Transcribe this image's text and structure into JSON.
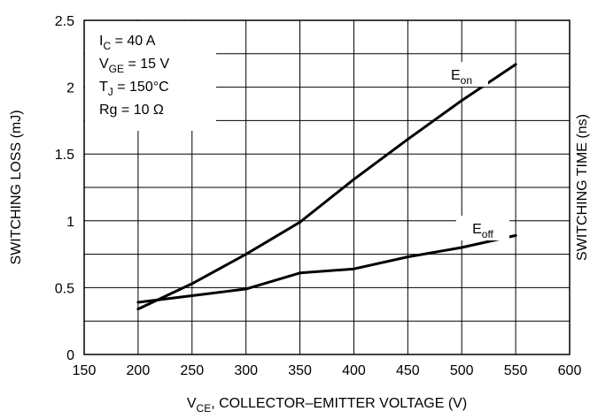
{
  "chart_data": {
    "type": "line",
    "xlabel": {
      "main": "V",
      "sub": "CE",
      "rest": ", COLLECTOR–EMITTER VOLTAGE (V)"
    },
    "ylabel": "SWITCHING LOSS (mJ)",
    "ylabel_right_partial": "SWITCHING TIME (ns)",
    "xlim": [
      150,
      600
    ],
    "ylim": [
      0,
      2.5
    ],
    "x_ticks": [
      "150",
      "200",
      "250",
      "300",
      "350",
      "400",
      "450",
      "500",
      "550",
      "600"
    ],
    "y_ticks": [
      "0",
      "0.5",
      "1",
      "1.5",
      "2",
      "2.5"
    ],
    "grid": true,
    "conditions": [
      {
        "main": "I",
        "sub": "C",
        "rest": " = 40 A"
      },
      {
        "main": "V",
        "sub": "GE",
        "rest": " = 15 V"
      },
      {
        "main": "T",
        "sub": "J",
        "rest": " = 150°C"
      },
      {
        "main": "Rg = 10 Ω",
        "sub": "",
        "rest": ""
      }
    ],
    "series": [
      {
        "name": "Eon",
        "label_main": "E",
        "label_sub": "on",
        "x": [
          200,
          250,
          300,
          350,
          400,
          450,
          500,
          550
        ],
        "y": [
          0.34,
          0.53,
          0.75,
          0.99,
          1.31,
          1.61,
          1.9,
          2.17
        ]
      },
      {
        "name": "Eoff",
        "label_main": "E",
        "label_sub": "off",
        "x": [
          200,
          250,
          300,
          350,
          400,
          450,
          500,
          550
        ],
        "y": [
          0.39,
          0.44,
          0.49,
          0.61,
          0.64,
          0.73,
          0.8,
          0.89
        ]
      }
    ]
  }
}
